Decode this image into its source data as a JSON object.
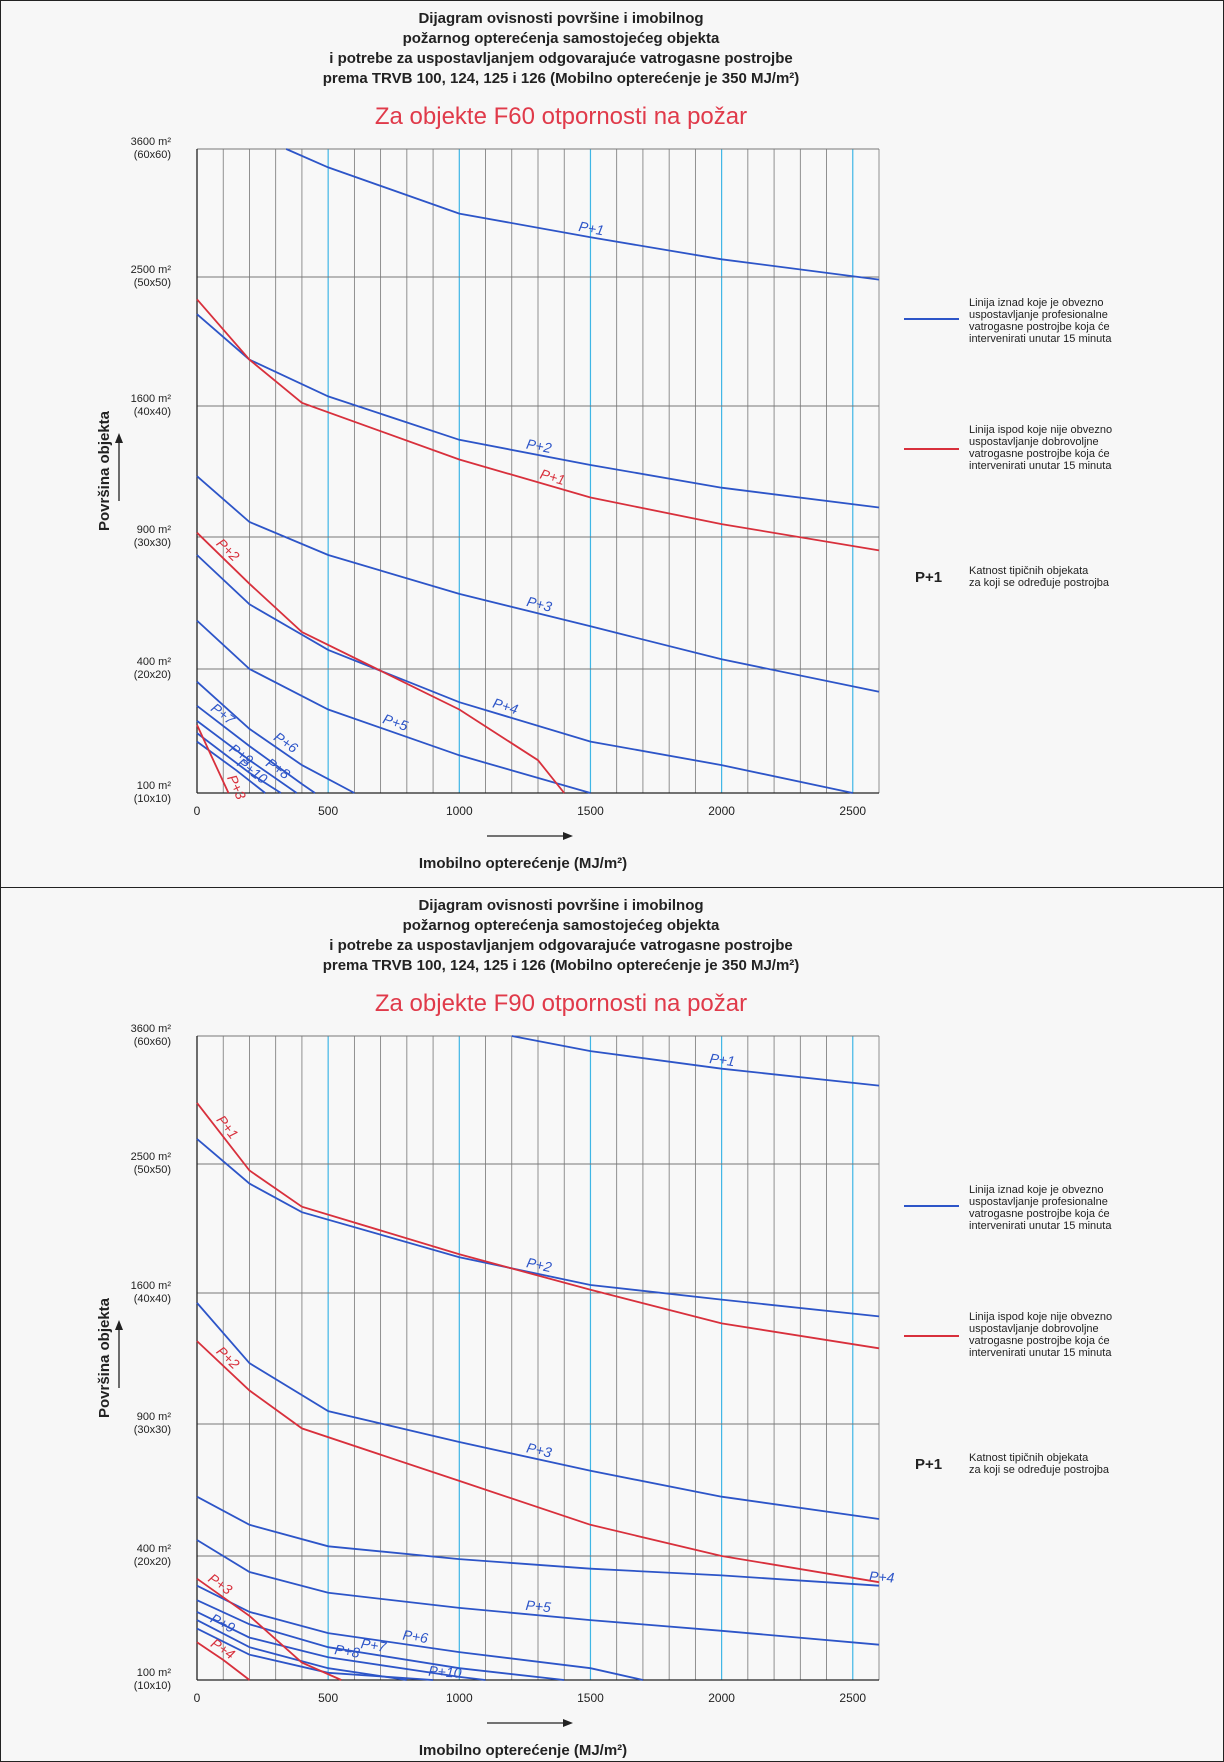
{
  "colors": {
    "blue": "#2d55c8",
    "red": "#d8303c",
    "grid": "#777777",
    "grid_cyan": "#3fb6e6"
  },
  "header": [
    "Dijagram ovisnosti površine i imobilnog",
    "požarnog opterećenja samostojećeg objekta",
    "i potrebe za uspostavljanjem odgovarajuće vatrogasne postrojbe",
    "prema TRVB 100, 124, 125 i 126 (Mobilno opterećenje je 350 MJ/m²)"
  ],
  "legend": {
    "blue": [
      "Linija iznad koje je obvezno",
      "uspostavljanje profesionalne",
      "vatrogasne postrojbe koja će",
      "intervenirati unutar 15 minuta"
    ],
    "red": [
      "Linija ispod koje nije obvezno",
      "uspostavljanje dobrovoljne",
      "vatrogasne postrojbe koja će",
      "intervenirati unutar 15 minuta"
    ],
    "katnost_symbol": "P+1",
    "katnost": [
      "Katnost tipičnih objekata",
      "za koji se određuje postrojba"
    ]
  },
  "chart_data": [
    {
      "type": "line",
      "title": "Za objekte F60 otpornosti na požar",
      "xlabel": "Imobilno opterećenje (MJ/m²)",
      "ylabel": "Površina objekta",
      "xlim": [
        0,
        2600
      ],
      "x_ticks": [
        "0",
        "500",
        "1000",
        "1500",
        "2000",
        "2500"
      ],
      "y_ticks": [
        {
          "value": 100,
          "label": "100 m²",
          "sub": "(10x10)"
        },
        {
          "value": 400,
          "label": "400 m²",
          "sub": "(20x20)"
        },
        {
          "value": 900,
          "label": "900 m²",
          "sub": "(30x30)"
        },
        {
          "value": 1600,
          "label": "1600 m²",
          "sub": "(40x40)"
        },
        {
          "value": 2500,
          "label": "2500 m²",
          "sub": "(50x50)"
        },
        {
          "value": 3600,
          "label": "3600 m²",
          "sub": "(60x60)"
        }
      ],
      "series": [
        {
          "name": "P+1",
          "color": "blue",
          "label_at": 1450,
          "points": [
            [
              340,
              3600
            ],
            [
              500,
              3430
            ],
            [
              1000,
              3020
            ],
            [
              1500,
              2820
            ],
            [
              2000,
              2640
            ],
            [
              2600,
              2480
            ]
          ]
        },
        {
          "name": "P+2",
          "color": "blue",
          "label_at": 1250,
          "points": [
            [
              0,
              2220
            ],
            [
              200,
              1900
            ],
            [
              500,
              1660
            ],
            [
              1000,
              1400
            ],
            [
              1500,
              1260
            ],
            [
              2000,
              1140
            ],
            [
              2600,
              1040
            ]
          ]
        },
        {
          "name": "P+3",
          "color": "blue",
          "label_at": 1250,
          "points": [
            [
              0,
              1200
            ],
            [
              200,
              970
            ],
            [
              500,
              820
            ],
            [
              1000,
              660
            ],
            [
              1500,
              540
            ],
            [
              2000,
              430
            ],
            [
              2600,
              330
            ]
          ]
        },
        {
          "name": "P+4",
          "color": "blue",
          "label_at": 1120,
          "points": [
            [
              0,
              820
            ],
            [
              200,
              620
            ],
            [
              500,
              460
            ],
            [
              1000,
              300
            ],
            [
              1500,
              200
            ],
            [
              2000,
              150
            ],
            [
              2500,
              100
            ]
          ]
        },
        {
          "name": "P+5",
          "color": "blue",
          "label_at": 700,
          "points": [
            [
              0,
              560
            ],
            [
              200,
              400
            ],
            [
              500,
              280
            ],
            [
              1000,
              170
            ],
            [
              1500,
              100
            ]
          ]
        },
        {
          "name": "P+6",
          "color": "blue",
          "label_at": 280,
          "points": [
            [
              0,
              360
            ],
            [
              200,
              230
            ],
            [
              400,
              150
            ],
            [
              600,
              100
            ]
          ]
        },
        {
          "name": "P+7",
          "color": "blue",
          "label_at": 40,
          "points": [
            [
              0,
              290
            ],
            [
              200,
              190
            ],
            [
              400,
              115
            ],
            [
              450,
              100
            ]
          ]
        },
        {
          "name": "P+8",
          "color": "blue",
          "label_at": 250,
          "points": [
            [
              0,
              250
            ],
            [
              200,
              160
            ],
            [
              380,
              100
            ]
          ]
        },
        {
          "name": "P+9",
          "color": "blue",
          "label_at": 110,
          "points": [
            [
              0,
              220
            ],
            [
              200,
              135
            ],
            [
              320,
              100
            ]
          ]
        },
        {
          "name": "P+10",
          "color": "blue",
          "label_at": 140,
          "points": [
            [
              0,
              200
            ],
            [
              150,
              140
            ],
            [
              260,
              100
            ]
          ]
        },
        {
          "name": "P+1",
          "color": "red",
          "label_at": 1300,
          "points": [
            [
              0,
              2330
            ],
            [
              200,
              1900
            ],
            [
              400,
              1620
            ],
            [
              1000,
              1290
            ],
            [
              1500,
              1090
            ],
            [
              2000,
              960
            ],
            [
              2600,
              840
            ]
          ]
        },
        {
          "name": "P+2",
          "color": "red",
          "label_at": 60,
          "points": [
            [
              0,
              920
            ],
            [
              200,
              700
            ],
            [
              400,
              520
            ],
            [
              1000,
              280
            ],
            [
              1300,
              160
            ],
            [
              1400,
              100
            ]
          ]
        },
        {
          "name": "P+3",
          "color": "red",
          "label_at": 100,
          "points": [
            [
              0,
              240
            ],
            [
              120,
              100
            ]
          ]
        }
      ]
    },
    {
      "type": "line",
      "title": "Za objekte F90 otpornosti na požar",
      "xlabel": "Imobilno opterećenje (MJ/m²)",
      "ylabel": "Površina objekta",
      "xlim": [
        0,
        2600
      ],
      "x_ticks": [
        "0",
        "500",
        "1000",
        "1500",
        "2000",
        "2500"
      ],
      "y_ticks": [
        {
          "value": 100,
          "label": "100 m²",
          "sub": "(10x10)"
        },
        {
          "value": 400,
          "label": "400 m²",
          "sub": "(20x20)"
        },
        {
          "value": 900,
          "label": "900 m²",
          "sub": "(30x30)"
        },
        {
          "value": 1600,
          "label": "1600 m²",
          "sub": "(40x40)"
        },
        {
          "value": 2500,
          "label": "2500 m²",
          "sub": "(50x50)"
        },
        {
          "value": 3600,
          "label": "3600 m²",
          "sub": "(60x60)"
        }
      ],
      "series": [
        {
          "name": "P+1",
          "color": "blue",
          "label_at": 1950,
          "points": [
            [
              1200,
              3600
            ],
            [
              1500,
              3460
            ],
            [
              2000,
              3300
            ],
            [
              2600,
              3150
            ]
          ]
        },
        {
          "name": "P+2",
          "color": "blue",
          "label_at": 1250,
          "points": [
            [
              0,
              2700
            ],
            [
              200,
              2350
            ],
            [
              400,
              2140
            ],
            [
              1000,
              1830
            ],
            [
              1500,
              1650
            ],
            [
              2000,
              1560
            ],
            [
              2600,
              1460
            ]
          ]
        },
        {
          "name": "P+3",
          "color": "blue",
          "label_at": 1250,
          "points": [
            [
              0,
              1540
            ],
            [
              200,
              1200
            ],
            [
              500,
              960
            ],
            [
              1000,
              820
            ],
            [
              1500,
              700
            ],
            [
              2000,
              600
            ],
            [
              2600,
              520
            ]
          ]
        },
        {
          "name": "P+4",
          "color": "blue",
          "label_at": 2560,
          "points": [
            [
              0,
              600
            ],
            [
              200,
              500
            ],
            [
              500,
              430
            ],
            [
              1000,
              390
            ],
            [
              1500,
              360
            ],
            [
              2000,
              340
            ],
            [
              2600,
              310
            ]
          ]
        },
        {
          "name": "P+5",
          "color": "blue",
          "label_at": 1250,
          "points": [
            [
              0,
              450
            ],
            [
              200,
              350
            ],
            [
              500,
              290
            ],
            [
              1000,
              250
            ],
            [
              1500,
              220
            ],
            [
              2000,
              195
            ],
            [
              2600,
              165
            ]
          ]
        },
        {
          "name": "P+6",
          "color": "blue",
          "label_at": 780,
          "points": [
            [
              0,
              310
            ],
            [
              200,
              240
            ],
            [
              500,
              190
            ],
            [
              1000,
              150
            ],
            [
              1500,
              120
            ],
            [
              1700,
              100
            ]
          ]
        },
        {
          "name": "P+7",
          "color": "blue",
          "label_at": 620,
          "points": [
            [
              0,
              270
            ],
            [
              200,
              210
            ],
            [
              500,
              160
            ],
            [
              1000,
              120
            ],
            [
              1400,
              100
            ]
          ]
        },
        {
          "name": "P+8",
          "color": "blue",
          "label_at": 520,
          "points": [
            [
              0,
              240
            ],
            [
              200,
              180
            ],
            [
              500,
              140
            ],
            [
              1000,
              105
            ],
            [
              1100,
              100
            ]
          ]
        },
        {
          "name": "P+9",
          "color": "blue",
          "label_at": 40,
          "points": [
            [
              0,
              220
            ],
            [
              200,
              160
            ],
            [
              500,
              120
            ],
            [
              800,
              100
            ]
          ]
        },
        {
          "name": "P+10",
          "color": "blue",
          "label_at": 880,
          "points": [
            [
              0,
              200
            ],
            [
              200,
              145
            ],
            [
              500,
              112
            ],
            [
              900,
              100
            ]
          ]
        },
        {
          "name": "P+1",
          "color": "red",
          "label_at": 60,
          "points": [
            [
              0,
              3000
            ],
            [
              200,
              2450
            ],
            [
              400,
              2180
            ],
            [
              1000,
              1850
            ],
            [
              1500,
              1620
            ],
            [
              2000,
              1420
            ],
            [
              2600,
              1280
            ]
          ]
        },
        {
          "name": "P+2",
          "color": "red",
          "label_at": 60,
          "points": [
            [
              0,
              1320
            ],
            [
              200,
              1060
            ],
            [
              400,
              880
            ],
            [
              1000,
              660
            ],
            [
              1500,
              500
            ],
            [
              2000,
              400
            ],
            [
              2600,
              320
            ]
          ]
        },
        {
          "name": "P+3",
          "color": "red",
          "label_at": 30,
          "points": [
            [
              0,
              330
            ],
            [
              200,
              230
            ],
            [
              400,
              130
            ],
            [
              550,
              100
            ]
          ]
        },
        {
          "name": "P+4",
          "color": "red",
          "label_at": 40,
          "points": [
            [
              0,
              170
            ],
            [
              100,
              135
            ],
            [
              200,
              100
            ]
          ]
        }
      ]
    }
  ]
}
